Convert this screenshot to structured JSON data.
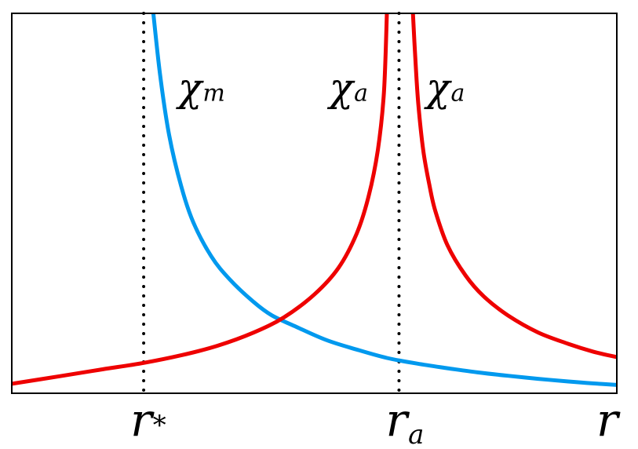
{
  "chart_data": {
    "type": "line",
    "title": "",
    "xlabel": "r",
    "ylabel": "",
    "grid": false,
    "legend": "none",
    "xlim": [
      0,
      1
    ],
    "ylim": [
      0,
      1
    ],
    "x_ticks": [
      {
        "label_main": "r",
        "label_sub": "*",
        "x": 0.218
      },
      {
        "label_main": "r",
        "label_sub": "a",
        "x": 0.64
      }
    ],
    "x_axis_end_label": "r",
    "vlines": [
      {
        "x": 0.218,
        "style": "dotted",
        "color": "#000000"
      },
      {
        "x": 0.64,
        "style": "dotted",
        "color": "#000000"
      }
    ],
    "series": [
      {
        "color": "#0099ee",
        "x": [
          0.234,
          0.245,
          0.26,
          0.28,
          0.3,
          0.33,
          0.36,
          0.4,
          0.43,
          0.47,
          0.52,
          0.57,
          0.62,
          0.67,
          0.72,
          0.77,
          0.82,
          0.87,
          0.92,
          0.96,
          1.0
        ],
        "y": [
          1.0,
          0.84,
          0.68,
          0.545,
          0.45,
          0.36,
          0.3,
          0.24,
          0.205,
          0.175,
          0.14,
          0.115,
          0.093,
          0.078,
          0.066,
          0.055,
          0.046,
          0.038,
          0.031,
          0.026,
          0.022
        ]
      },
      {
        "color": "#ee0000",
        "x": [
          0.0,
          0.08,
          0.15,
          0.218,
          0.28,
          0.34,
          0.4,
          0.45,
          0.5,
          0.54,
          0.57,
          0.59,
          0.605,
          0.615,
          0.62
        ],
        "y": [
          0.025,
          0.045,
          0.063,
          0.08,
          0.1,
          0.125,
          0.16,
          0.2,
          0.26,
          0.33,
          0.42,
          0.52,
          0.64,
          0.79,
          1.0
        ]
      },
      {
        "color": "#ee0000",
        "x": [
          0.663,
          0.667,
          0.672,
          0.68,
          0.69,
          0.7,
          0.72,
          0.75,
          0.78,
          0.82,
          0.87,
          0.92,
          0.96,
          1.0
        ],
        "y": [
          1.0,
          0.88,
          0.76,
          0.64,
          0.55,
          0.48,
          0.39,
          0.31,
          0.255,
          0.205,
          0.16,
          0.13,
          0.11,
          0.095
        ]
      }
    ],
    "annotations": [
      {
        "label_main": "χ",
        "label_sub": "m",
        "x": 0.275,
        "y": 0.77
      },
      {
        "label_main": "χ",
        "label_sub": "a",
        "x": 0.525,
        "y": 0.77
      },
      {
        "label_main": "χ",
        "label_sub": "a",
        "x": 0.685,
        "y": 0.77
      }
    ]
  }
}
